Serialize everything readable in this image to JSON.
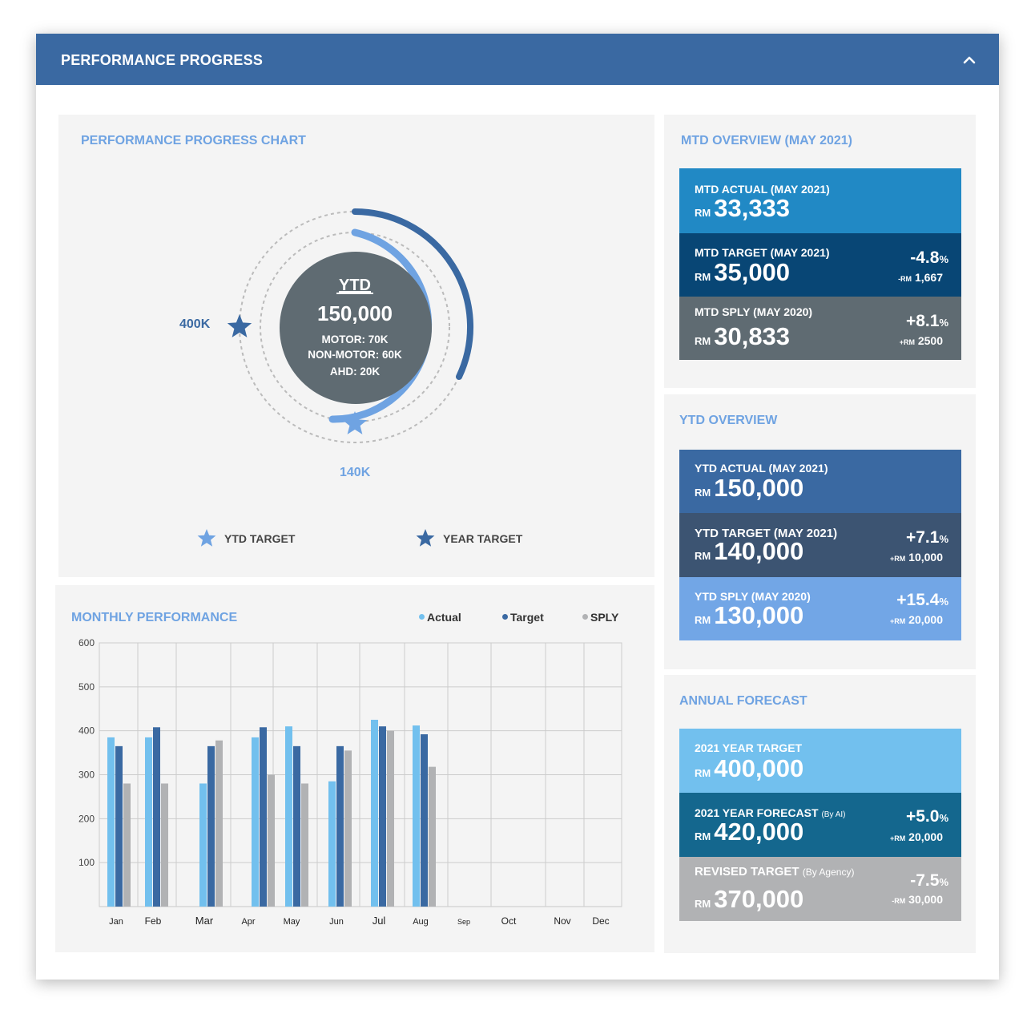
{
  "header": {
    "title": "PERFORMANCE PROGRESS"
  },
  "progress_chart": {
    "title": "PERFORMANCE PROGRESS CHART",
    "center_title": "YTD",
    "center_value": "150,000",
    "center_lines": [
      "MOTOR: 70K",
      "NON-MOTOR: 60K",
      "AHD: 20K"
    ],
    "year_target_label": "400K",
    "ytd_target_label": "140K",
    "legend": {
      "ytd_target": "YTD TARGET",
      "year_target": "YEAR TARGET"
    },
    "colors": {
      "ytd": "#6fa3e2",
      "year": "#3a69a2",
      "center": "#5f6b72"
    }
  },
  "monthly": {
    "title": "MONTHLY PERFORMANCE",
    "legend": [
      "Actual",
      "Target",
      "SPLY"
    ]
  },
  "chart_data": {
    "type": "bar",
    "title": "MONTHLY PERFORMANCE",
    "categories": [
      "Jan",
      "Feb",
      "Mar",
      "Apr",
      "May",
      "Jun",
      "Jul",
      "Aug",
      "Sep",
      "Oct",
      "Nov",
      "Dec"
    ],
    "series": [
      {
        "name": "Actual",
        "color": "#72c0ee",
        "values": [
          385,
          385,
          280,
          385,
          410,
          285,
          425,
          412,
          null,
          null,
          null,
          null
        ]
      },
      {
        "name": "Target",
        "color": "#3a69a2",
        "values": [
          365,
          408,
          365,
          408,
          365,
          365,
          410,
          392,
          null,
          null,
          null,
          null
        ]
      },
      {
        "name": "SPLY",
        "color": "#b1b2b4",
        "values": [
          280,
          280,
          378,
          300,
          280,
          355,
          400,
          318,
          null,
          null,
          null,
          null
        ]
      }
    ],
    "yticks": [
      100,
      200,
      300,
      400,
      500,
      600
    ],
    "ylim": [
      0,
      600
    ],
    "grid": true,
    "legend_position": "top-right"
  },
  "mtd": {
    "title": "MTD OVERVIEW (MAY 2021)",
    "actual": {
      "label": "MTD ACTUAL (MAY 2021)",
      "rm": "RM",
      "value": "33,333",
      "color": "#2189c5"
    },
    "target": {
      "label": "MTD TARGET (MAY 2021)",
      "rm": "RM",
      "value": "35,000",
      "pct": "-4.8",
      "unit": "%",
      "diff_prefix": "-RM",
      "diff": "1,667",
      "color": "#084675"
    },
    "sply": {
      "label": "MTD SPLY (MAY 2020)",
      "rm": "RM",
      "value": "30,833",
      "pct": "+8.1",
      "unit": "%",
      "diff_prefix": "+RM",
      "diff": "2500",
      "color": "#5f6b72"
    }
  },
  "ytd": {
    "title": "YTD OVERVIEW",
    "actual": {
      "label": "YTD ACTUAL (MAY 2021)",
      "rm": "RM",
      "value": "150,000",
      "color": "#3a69a2"
    },
    "target": {
      "label": "YTD TARGET (MAY 2021)",
      "rm": "RM",
      "value": "140,000",
      "pct": "+7.1",
      "unit": "%",
      "diff_prefix": "+RM",
      "diff": "10,000",
      "color": "#3c5472"
    },
    "sply": {
      "label": "YTD SPLY (MAY 2020)",
      "rm": "RM",
      "value": "130,000",
      "pct": "+15.4",
      "unit": "%",
      "diff_prefix": "+RM",
      "diff": "20,000",
      "color": "#72a6e6"
    }
  },
  "forecast": {
    "title": "ANNUAL FORECAST",
    "year_target": {
      "label": "2021 YEAR TARGET",
      "rm": "RM",
      "value": "400,000",
      "color": "#72c0ee"
    },
    "year_forecast": {
      "label": "2021 YEAR FORECAST",
      "note": "(By AI)",
      "rm": "RM",
      "value": "420,000",
      "pct": "+5.0",
      "unit": "%",
      "diff_prefix": "+RM",
      "diff": "20,000",
      "color": "#14678e"
    },
    "revised": {
      "label": "REVISED TARGET",
      "note": "(By Agency)",
      "rm": "RM",
      "value": "370,000",
      "pct": "-7.5",
      "unit": "%",
      "diff_prefix": "-RM",
      "diff": "30,000",
      "color": "#b1b2b4"
    }
  }
}
